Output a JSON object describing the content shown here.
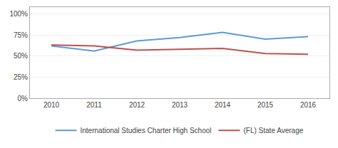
{
  "chart_data": {
    "type": "line",
    "x": [
      2010,
      2011,
      2012,
      2013,
      2014,
      2015,
      2016
    ],
    "series": [
      {
        "name": "International Studies Charter High School",
        "color": "#5b9bd5",
        "values": [
          62,
          56,
          68,
          72,
          78,
          70,
          73
        ]
      },
      {
        "name": "(FL) State Average",
        "color": "#c0504d",
        "values": [
          63,
          62,
          57,
          58,
          59,
          53,
          52
        ]
      }
    ],
    "xlim": [
      2009.5,
      2016.5
    ],
    "xticks": [
      2010,
      2011,
      2012,
      2013,
      2014,
      2015,
      2016
    ],
    "ylim": [
      0,
      108
    ],
    "yticks": [
      {
        "value": 0,
        "label": "0%"
      },
      {
        "value": 25,
        "label": "25%"
      },
      {
        "value": 50,
        "label": "50%"
      },
      {
        "value": 75,
        "label": "75%"
      },
      {
        "value": 100,
        "label": "100%"
      }
    ],
    "grid": true,
    "legend": "bottom"
  }
}
